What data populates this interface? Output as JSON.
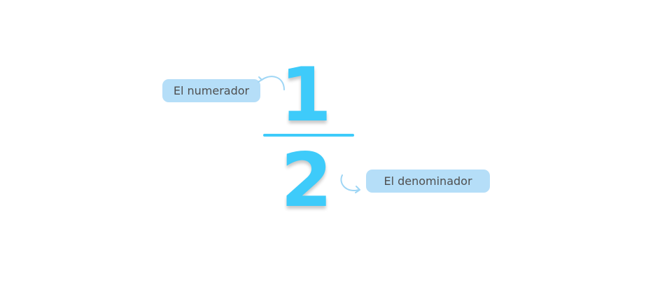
{
  "fraction": {
    "numerator": "1",
    "denominator": "2"
  },
  "labels": {
    "numerator": "El numerador",
    "denominator": "El denominador"
  },
  "colors": {
    "digits": "#3ecbfa",
    "fraction_bar": "#3ecbfa",
    "label_background": "#b5def8",
    "label_text": "#4f4f4f",
    "arrow": "#9fd6f5"
  },
  "icons": {
    "numerator_arrow": "curved-arrow-icon",
    "denominator_arrow": "curved-arrow-icon"
  }
}
